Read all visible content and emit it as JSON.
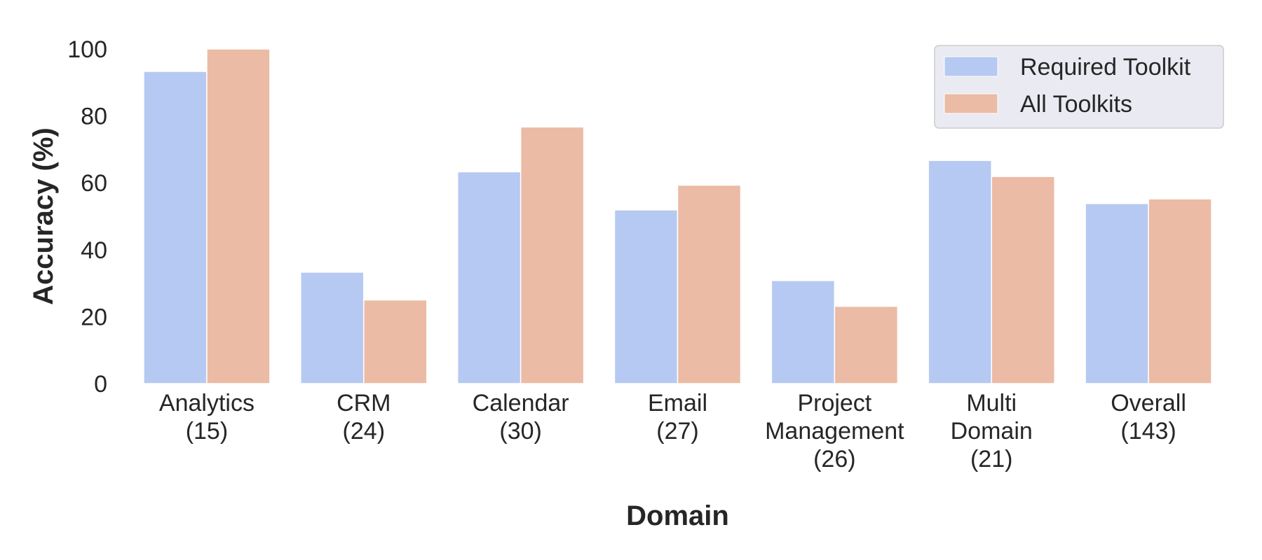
{
  "chart_data": {
    "type": "bar",
    "title": "",
    "xlabel": "Domain",
    "ylabel": "Accuracy (%)",
    "ylim": [
      0,
      100
    ],
    "yticks": [
      0,
      20,
      40,
      60,
      80,
      100
    ],
    "grid": false,
    "legend_position": "top-right",
    "categories": [
      [
        "Analytics",
        "(15)"
      ],
      [
        "CRM",
        "(24)"
      ],
      [
        "Calendar",
        "(30)"
      ],
      [
        "Email",
        "(27)"
      ],
      [
        "Project",
        "Management",
        "(26)"
      ],
      [
        "Multi",
        "Domain",
        "(21)"
      ],
      [
        "Overall",
        "(143)"
      ]
    ],
    "series": [
      {
        "name": "Required Toolkit",
        "color": "#b6c9f2",
        "values": [
          93.3,
          33.3,
          63.3,
          51.9,
          30.8,
          66.7,
          53.8
        ]
      },
      {
        "name": "All Toolkits",
        "color": "#ebbba5",
        "values": [
          100.0,
          25.0,
          76.7,
          59.3,
          23.1,
          61.9,
          55.2
        ]
      }
    ]
  }
}
